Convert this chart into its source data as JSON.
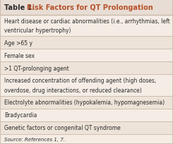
{
  "title_prefix": "Table 1. ",
  "title_colored": "Risk Factors for QT Prolongation",
  "title_prefix_color": "#2b2b2b",
  "title_color": "#b5522a",
  "header_bg": "#e8ddd4",
  "row_bg_odd": "#f5ede5",
  "row_bg_even": "#ede3d8",
  "border_color": "#c8b8a8",
  "outer_bg": "#f5ede5",
  "rows": [
    [
      "Heart disease or cardiac abnormalities (i.e., arrhythmias, left",
      "ventricular hypertrophy)"
    ],
    [
      "Age >65 y"
    ],
    [
      "Female sex"
    ],
    [
      ">1 QT-prolonging agent"
    ],
    [
      "Increased concentration of offending agent (high doses,",
      "overdose, drug interactions, or reduced clearance)"
    ],
    [
      "Electrolyte abnormalities (hypokalemia, hypomagnesemia)"
    ],
    [
      "Bradycardia"
    ],
    [
      "Genetic factors or congenital QT syndrome"
    ]
  ],
  "source_text": "Source: References 1, 7.",
  "text_color": "#2b2b2b",
  "body_font_size": 5.5,
  "title_font_size": 7.0,
  "source_font_size": 5.0,
  "fig_width": 2.45,
  "fig_height": 2.05,
  "dpi": 100
}
